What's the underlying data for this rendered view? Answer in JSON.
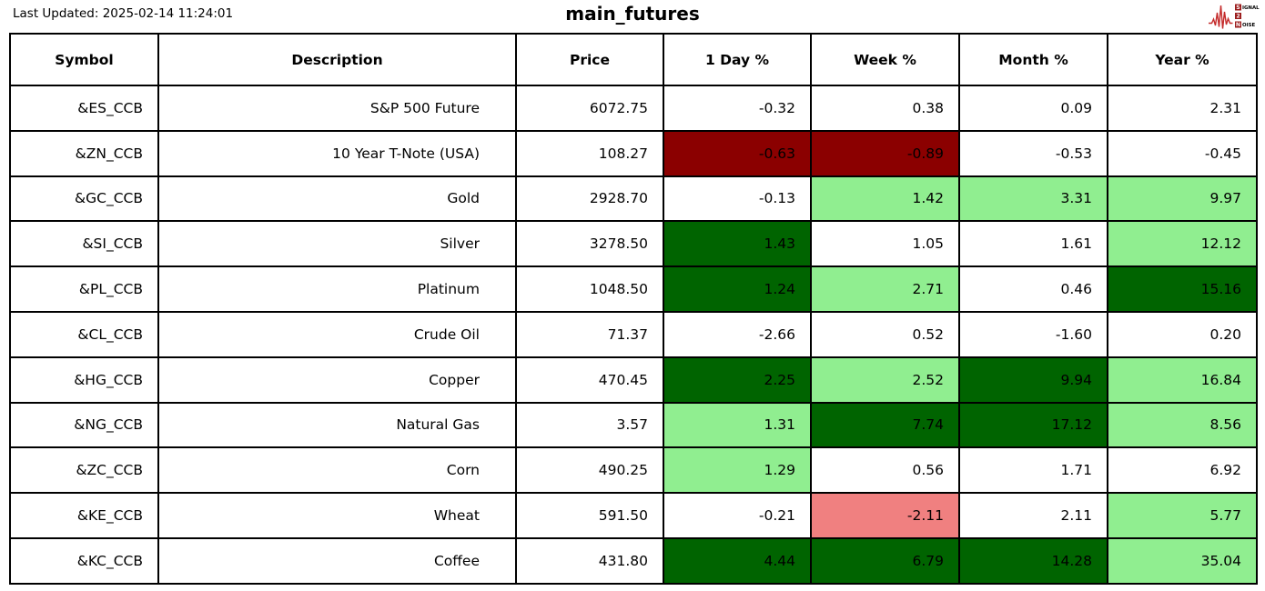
{
  "page": {
    "last_updated": "Last Updated: 2025-02-14 11:24:01",
    "title": "main_futures"
  },
  "logo": {
    "letter_s": "S",
    "word_signal_rest": "IGNAL",
    "digit_2": "2",
    "letter_n": "N",
    "word_noise_rest": "OISE"
  },
  "colors": {
    "dark_green": "#006400",
    "light_green": "#90EE90",
    "dark_red": "#8B0000",
    "light_red": "#F08080",
    "border": "#000000",
    "logo_red": "#C42B2B",
    "logo_box": "#9B1C1C"
  },
  "chart_data": {
    "type": "table",
    "title": "main_futures",
    "columns": [
      "Symbol",
      "Description",
      "Price",
      "1 Day %",
      "Week %",
      "Month %",
      "Year %"
    ],
    "rows": [
      {
        "symbol": "&ES_CCB",
        "description": "S&P 500 Future",
        "price": "6072.75",
        "changes": [
          {
            "value": "-0.32",
            "bg": "none"
          },
          {
            "value": "0.38",
            "bg": "none"
          },
          {
            "value": "0.09",
            "bg": "none"
          },
          {
            "value": "2.31",
            "bg": "none"
          }
        ]
      },
      {
        "symbol": "&ZN_CCB",
        "description": "10 Year T-Note (USA)",
        "price": "108.27",
        "changes": [
          {
            "value": "-0.63",
            "bg": "dark_red"
          },
          {
            "value": "-0.89",
            "bg": "dark_red"
          },
          {
            "value": "-0.53",
            "bg": "none"
          },
          {
            "value": "-0.45",
            "bg": "none"
          }
        ]
      },
      {
        "symbol": "&GC_CCB",
        "description": "Gold",
        "price": "2928.70",
        "changes": [
          {
            "value": "-0.13",
            "bg": "none"
          },
          {
            "value": "1.42",
            "bg": "light_green"
          },
          {
            "value": "3.31",
            "bg": "light_green"
          },
          {
            "value": "9.97",
            "bg": "light_green"
          }
        ]
      },
      {
        "symbol": "&SI_CCB",
        "description": "Silver",
        "price": "3278.50",
        "changes": [
          {
            "value": "1.43",
            "bg": "dark_green"
          },
          {
            "value": "1.05",
            "bg": "none"
          },
          {
            "value": "1.61",
            "bg": "none"
          },
          {
            "value": "12.12",
            "bg": "light_green"
          }
        ]
      },
      {
        "symbol": "&PL_CCB",
        "description": "Platinum",
        "price": "1048.50",
        "changes": [
          {
            "value": "1.24",
            "bg": "dark_green"
          },
          {
            "value": "2.71",
            "bg": "light_green"
          },
          {
            "value": "0.46",
            "bg": "none"
          },
          {
            "value": "15.16",
            "bg": "dark_green"
          }
        ]
      },
      {
        "symbol": "&CL_CCB",
        "description": "Crude Oil",
        "price": "71.37",
        "changes": [
          {
            "value": "-2.66",
            "bg": "none"
          },
          {
            "value": "0.52",
            "bg": "none"
          },
          {
            "value": "-1.60",
            "bg": "none"
          },
          {
            "value": "0.20",
            "bg": "none"
          }
        ]
      },
      {
        "symbol": "&HG_CCB",
        "description": "Copper",
        "price": "470.45",
        "changes": [
          {
            "value": "2.25",
            "bg": "dark_green"
          },
          {
            "value": "2.52",
            "bg": "light_green"
          },
          {
            "value": "9.94",
            "bg": "dark_green"
          },
          {
            "value": "16.84",
            "bg": "light_green"
          }
        ]
      },
      {
        "symbol": "&NG_CCB",
        "description": "Natural Gas",
        "price": "3.57",
        "changes": [
          {
            "value": "1.31",
            "bg": "light_green"
          },
          {
            "value": "7.74",
            "bg": "dark_green"
          },
          {
            "value": "17.12",
            "bg": "dark_green"
          },
          {
            "value": "8.56",
            "bg": "light_green"
          }
        ]
      },
      {
        "symbol": "&ZC_CCB",
        "description": "Corn",
        "price": "490.25",
        "changes": [
          {
            "value": "1.29",
            "bg": "light_green"
          },
          {
            "value": "0.56",
            "bg": "none"
          },
          {
            "value": "1.71",
            "bg": "none"
          },
          {
            "value": "6.92",
            "bg": "none"
          }
        ]
      },
      {
        "symbol": "&KE_CCB",
        "description": "Wheat",
        "price": "591.50",
        "changes": [
          {
            "value": "-0.21",
            "bg": "none"
          },
          {
            "value": "-2.11",
            "bg": "light_red"
          },
          {
            "value": "2.11",
            "bg": "none"
          },
          {
            "value": "5.77",
            "bg": "light_green"
          }
        ]
      },
      {
        "symbol": "&KC_CCB",
        "description": "Coffee",
        "price": "431.80",
        "changes": [
          {
            "value": "4.44",
            "bg": "dark_green"
          },
          {
            "value": "6.79",
            "bg": "dark_green"
          },
          {
            "value": "14.28",
            "bg": "dark_green"
          },
          {
            "value": "35.04",
            "bg": "light_green"
          }
        ]
      }
    ]
  }
}
